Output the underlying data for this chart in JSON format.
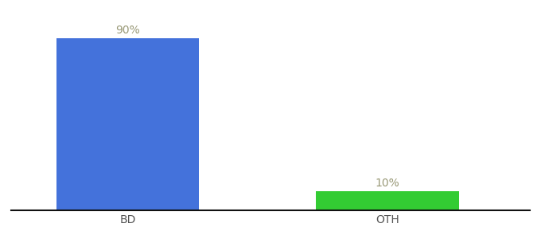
{
  "categories": [
    "BD",
    "OTH"
  ],
  "values": [
    90,
    10
  ],
  "bar_colors": [
    "#4472db",
    "#33cc33"
  ],
  "labels": [
    "90%",
    "10%"
  ],
  "background_color": "#ffffff",
  "axis_line_color": "#111111",
  "label_color": "#999977",
  "tick_color": "#555555",
  "ylim": [
    0,
    100
  ],
  "bar_width": 0.55,
  "label_fontsize": 10,
  "tick_fontsize": 10,
  "xlim": [
    -0.45,
    1.55
  ]
}
